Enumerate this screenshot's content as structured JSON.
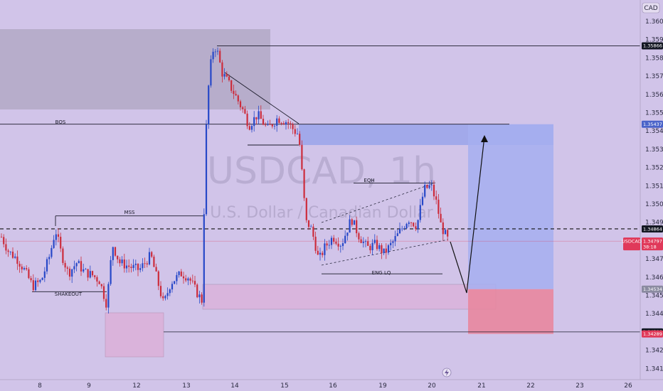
{
  "chart_data": {
    "type": "candlestick",
    "symbol": "USDCAD",
    "interval": "1h",
    "watermark_title": "USDCAD, 1h",
    "watermark_subtitle": "U.S. Dollar / Canadian Dollar",
    "currency": "CAD",
    "ylim": [
      1.3405,
      1.3608
    ],
    "price_ticks": [
      "1.36000",
      "1.35900",
      "1.35800",
      "1.35700",
      "1.35600",
      "1.35500",
      "1.35400",
      "1.35300",
      "1.35200",
      "1.35100",
      "1.35000",
      "1.34900",
      "1.34800",
      "1.34700",
      "1.34600",
      "1.34500",
      "1.34400",
      "1.34300",
      "1.34200",
      "1.34100"
    ],
    "time_ticks": [
      "8",
      "9",
      "12",
      "13",
      "14",
      "15",
      "16",
      "19",
      "20",
      "21",
      "22",
      "23",
      "26"
    ],
    "price_tags": [
      {
        "label": "1.35866",
        "value": 1.35866,
        "bg": "#131722"
      },
      {
        "label": "1.35437",
        "value": 1.35437,
        "bg": "#4a63c9"
      },
      {
        "label": "1.34864",
        "value": 1.34864,
        "bg": "#131722"
      },
      {
        "label": "1.34797",
        "value": 1.34797,
        "bg": "#e0395a",
        "sub": "38:18"
      },
      {
        "label": "1.34534",
        "value": 1.34534,
        "bg": "#8a8aa0"
      },
      {
        "label": "1.34300",
        "value": 1.343,
        "bg": "#131722"
      },
      {
        "label": "1.34289",
        "value": 1.34289,
        "bg": "#e0395a"
      }
    ],
    "annotations": [
      {
        "label": "BOS",
        "value": 1.35437
      },
      {
        "label": "MSS",
        "value": 1.34935
      },
      {
        "label": "SHAKEOUT",
        "value": 1.3452
      },
      {
        "label": "EQH",
        "value": 1.35115
      },
      {
        "label": "ENG LQ",
        "value": 1.34618
      }
    ],
    "current_price": 1.34797,
    "countdown": "38:18",
    "trade_setup": {
      "entry": 1.34534,
      "stop": 1.34289,
      "target": 1.35437
    },
    "key_levels": {
      "swing_high": 1.35866,
      "dashed_level": 1.34864,
      "low_line": 1.343
    },
    "colors": {
      "bull": "#2748c8",
      "bear": "#cc2c3c",
      "background": "#d1c4e9"
    }
  },
  "ui": {
    "currency_label": "CAD",
    "bolt_icon": "lightning-icon"
  }
}
